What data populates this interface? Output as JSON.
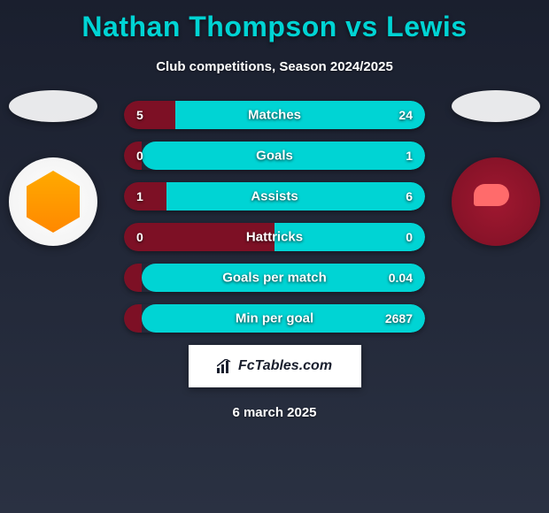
{
  "title": "Nathan Thompson vs Lewis",
  "subtitle": "Club competitions, Season 2024/2025",
  "date": "6 march 2025",
  "logo": "FcTables.com",
  "colors": {
    "title_color": "#00d4d4",
    "text_color": "#ffffff",
    "bar_left_color": "#7d1025",
    "bar_right_color": "#00d4d4",
    "background_start": "#1a1f2e",
    "background_end": "#2a3142",
    "logo_bg": "#ffffff"
  },
  "stats": [
    {
      "label": "Matches",
      "left_value": "5",
      "right_value": "24",
      "left_pct": 17,
      "right_pct": 83
    },
    {
      "label": "Goals",
      "left_value": "0",
      "right_value": "1",
      "left_pct": 6,
      "right_pct": 94
    },
    {
      "label": "Assists",
      "left_value": "1",
      "right_value": "6",
      "left_pct": 14,
      "right_pct": 86
    },
    {
      "label": "Hattricks",
      "left_value": "0",
      "right_value": "0",
      "left_pct": 50,
      "right_pct": 50
    },
    {
      "label": "Goals per match",
      "left_value": "",
      "right_value": "0.04",
      "left_pct": 6,
      "right_pct": 94
    },
    {
      "label": "Min per goal",
      "left_value": "",
      "right_value": "2687",
      "left_pct": 6,
      "right_pct": 94
    }
  ]
}
